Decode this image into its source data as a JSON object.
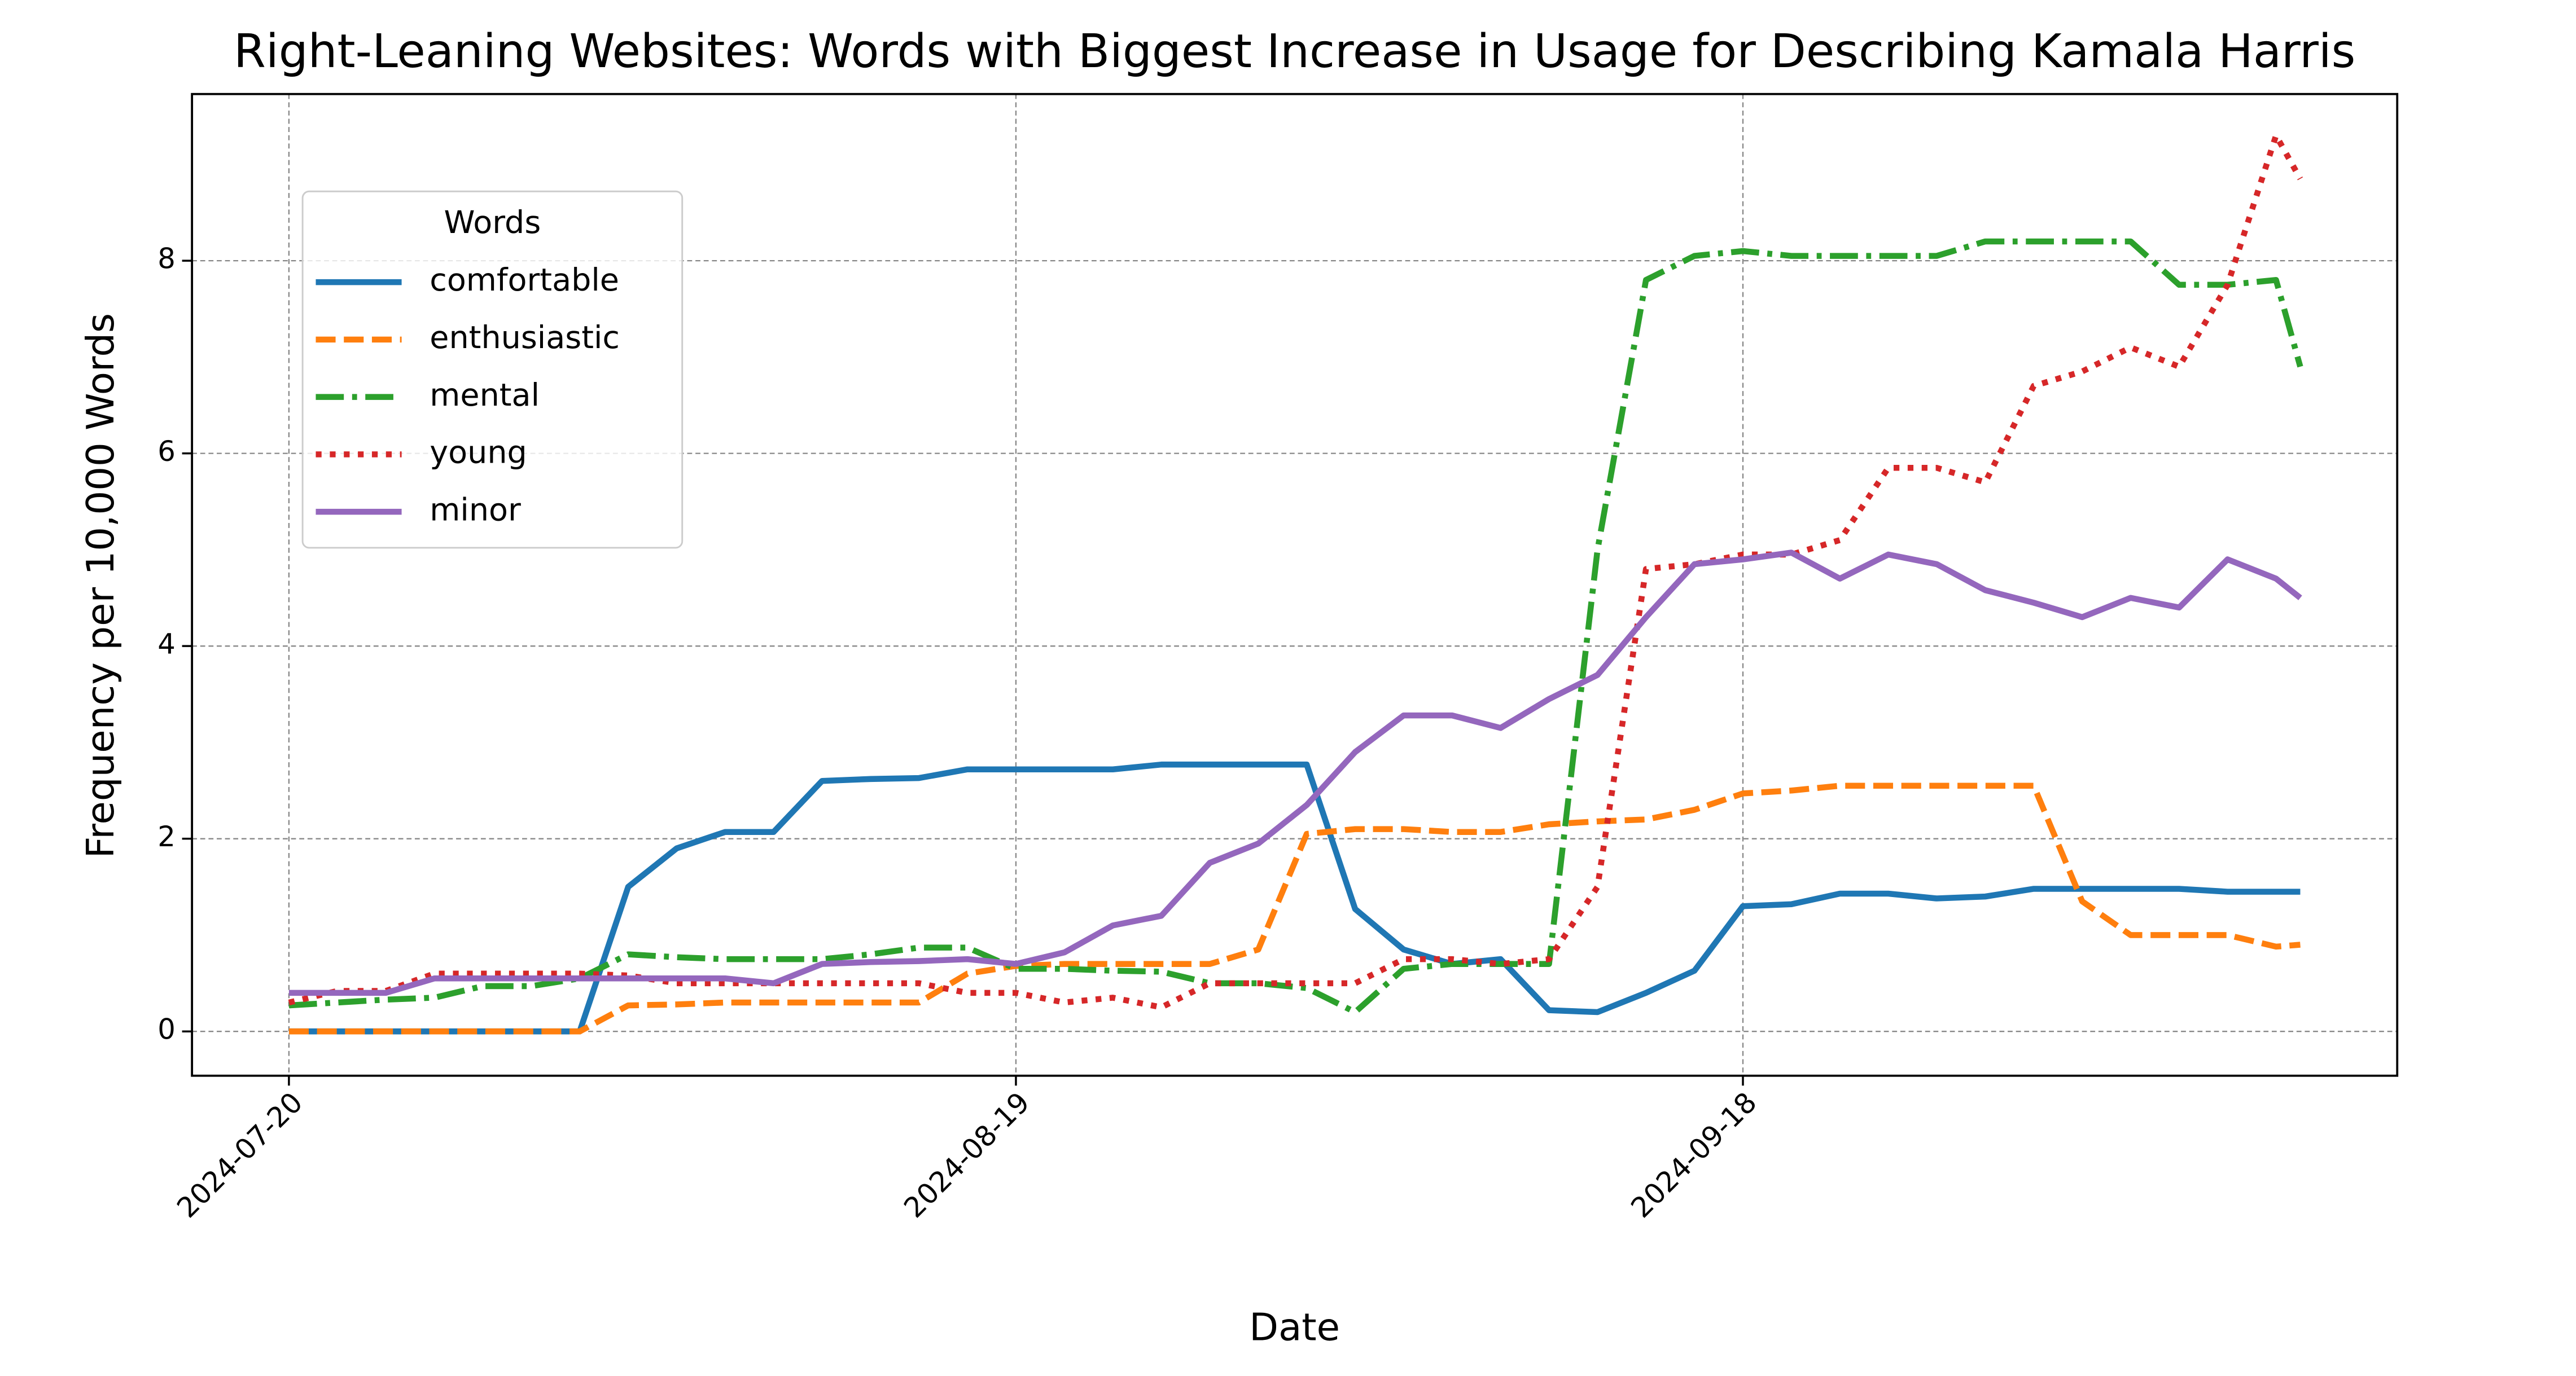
{
  "chart_data": {
    "type": "line",
    "title": "Right-Leaning Websites: Words with Biggest Increase in Usage for Describing Kamala Harris",
    "x_label": "Date",
    "y_label": "Frequency per 10,000 Words",
    "legend_title": "Words",
    "legend_position": "upper left",
    "grid": true,
    "x": [
      "2024-07-20",
      "2024-07-22",
      "2024-07-24",
      "2024-07-26",
      "2024-07-28",
      "2024-07-30",
      "2024-08-01",
      "2024-08-03",
      "2024-08-05",
      "2024-08-07",
      "2024-08-09",
      "2024-08-11",
      "2024-08-13",
      "2024-08-15",
      "2024-08-17",
      "2024-08-19",
      "2024-08-21",
      "2024-08-23",
      "2024-08-25",
      "2024-08-27",
      "2024-08-29",
      "2024-08-31",
      "2024-09-02",
      "2024-09-04",
      "2024-09-06",
      "2024-09-08",
      "2024-09-10",
      "2024-09-12",
      "2024-09-14",
      "2024-09-16",
      "2024-09-18",
      "2024-09-20",
      "2024-09-22",
      "2024-09-24",
      "2024-09-26",
      "2024-09-28",
      "2024-09-30",
      "2024-10-02",
      "2024-10-04",
      "2024-10-06",
      "2024-10-08",
      "2024-10-10",
      "2024-10-11"
    ],
    "xlim": [
      "2024-07-16",
      "2024-10-15"
    ],
    "xticks": [
      "2024-07-20",
      "2024-08-19",
      "2024-09-18"
    ],
    "ylim": [
      -0.46,
      9.73
    ],
    "yticks": [
      0,
      2,
      4,
      6,
      8
    ],
    "series": [
      {
        "name": "comfortable",
        "color": "#1f77b4",
        "style": "solid",
        "values": [
          0,
          0,
          0,
          0,
          0,
          0,
          0,
          1.5,
          1.9,
          2.07,
          2.07,
          2.6,
          2.62,
          2.63,
          2.72,
          2.72,
          2.72,
          2.72,
          2.77,
          2.77,
          2.77,
          2.77,
          1.27,
          0.85,
          0.7,
          0.75,
          0.22,
          0.2,
          0.4,
          0.63,
          1.3,
          1.32,
          1.43,
          1.43,
          1.38,
          1.4,
          1.48,
          1.48,
          1.48,
          1.48,
          1.45,
          1.45,
          1.45
        ]
      },
      {
        "name": "enthusiastic",
        "color": "#ff7f0e",
        "style": "dashed",
        "values": [
          0,
          0,
          0,
          0,
          0,
          0,
          0,
          0.27,
          0.28,
          0.3,
          0.3,
          0.3,
          0.3,
          0.3,
          0.6,
          0.68,
          0.7,
          0.7,
          0.7,
          0.7,
          0.85,
          2.05,
          2.1,
          2.1,
          2.07,
          2.07,
          2.15,
          2.18,
          2.2,
          2.3,
          2.47,
          2.5,
          2.55,
          2.55,
          2.55,
          2.55,
          2.55,
          1.35,
          1.0,
          1.0,
          1.0,
          0.88,
          0.9
        ]
      },
      {
        "name": "mental",
        "color": "#2ca02c",
        "style": "dashdot",
        "values": [
          0.27,
          0.3,
          0.33,
          0.35,
          0.47,
          0.47,
          0.55,
          0.8,
          0.77,
          0.75,
          0.75,
          0.75,
          0.8,
          0.87,
          0.87,
          0.65,
          0.65,
          0.63,
          0.62,
          0.5,
          0.5,
          0.45,
          0.2,
          0.65,
          0.7,
          0.7,
          0.7,
          5.0,
          7.8,
          8.05,
          8.1,
          8.05,
          8.05,
          8.05,
          8.05,
          8.2,
          8.2,
          8.2,
          8.2,
          7.75,
          7.75,
          7.8,
          6.9
        ]
      },
      {
        "name": "young",
        "color": "#d62728",
        "style": "dotted",
        "values": [
          0.3,
          0.42,
          0.42,
          0.6,
          0.6,
          0.6,
          0.6,
          0.58,
          0.5,
          0.5,
          0.5,
          0.5,
          0.5,
          0.5,
          0.4,
          0.4,
          0.3,
          0.35,
          0.25,
          0.5,
          0.5,
          0.5,
          0.5,
          0.75,
          0.75,
          0.7,
          0.75,
          1.5,
          4.8,
          4.85,
          4.95,
          4.95,
          5.1,
          5.85,
          5.85,
          5.7,
          6.7,
          6.85,
          7.1,
          6.9,
          7.75,
          9.3,
          8.85
        ]
      },
      {
        "name": "minor",
        "color": "#9467bd",
        "style": "solid",
        "values": [
          0.4,
          0.4,
          0.4,
          0.55,
          0.55,
          0.55,
          0.55,
          0.55,
          0.55,
          0.55,
          0.5,
          0.7,
          0.72,
          0.73,
          0.75,
          0.7,
          0.82,
          1.1,
          1.2,
          1.75,
          1.95,
          2.35,
          2.9,
          3.28,
          3.28,
          3.15,
          3.45,
          3.7,
          4.3,
          4.85,
          4.9,
          4.97,
          4.7,
          4.95,
          4.85,
          4.58,
          4.45,
          4.3,
          4.5,
          4.4,
          4.9,
          4.7,
          4.5
        ]
      }
    ]
  }
}
